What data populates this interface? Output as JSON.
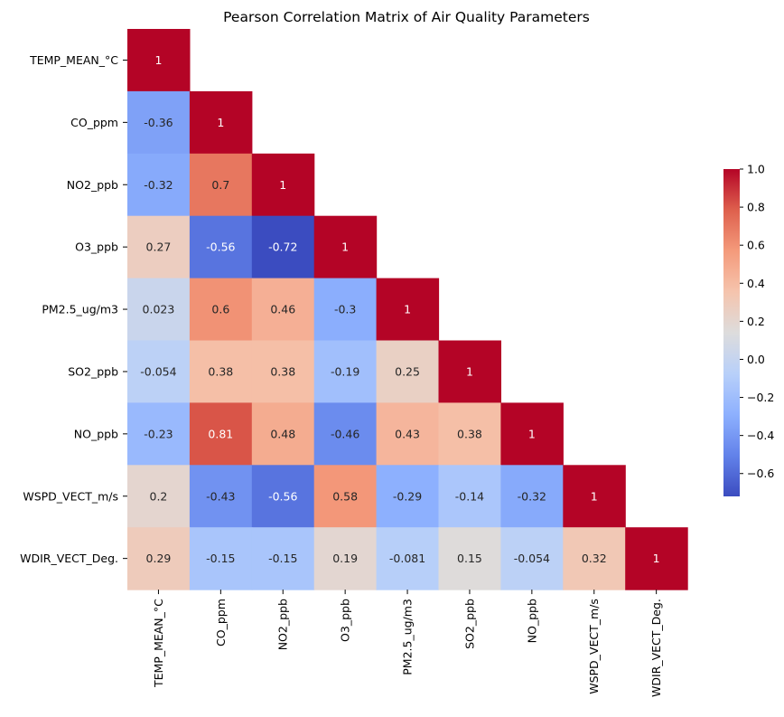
{
  "chart_data": {
    "type": "heatmap",
    "title": "Pearson Correlation Matrix of Air Quality Parameters",
    "xlabel": "",
    "ylabel": "",
    "colormap": "coolwarm",
    "mask": "upper-triangle",
    "labels": [
      "TEMP_MEAN_°C",
      "CO_ppm",
      "NO2_ppb",
      "O3_ppb",
      "PM2.5_ug/m3",
      "SO2_ppb",
      "NO_ppb",
      "WSPD_VECT_m/s",
      "WDIR_VECT_Deg."
    ],
    "values": [
      [
        1
      ],
      [
        -0.36,
        1
      ],
      [
        -0.32,
        0.7,
        1
      ],
      [
        0.27,
        -0.56,
        -0.72,
        1
      ],
      [
        0.023,
        0.6,
        0.46,
        -0.3,
        1
      ],
      [
        -0.054,
        0.38,
        0.38,
        -0.19,
        0.25,
        1
      ],
      [
        -0.23,
        0.81,
        0.48,
        -0.46,
        0.43,
        0.38,
        1
      ],
      [
        0.2,
        -0.43,
        -0.56,
        0.58,
        -0.29,
        -0.14,
        -0.32,
        1
      ],
      [
        0.29,
        -0.15,
        -0.15,
        0.19,
        -0.081,
        0.15,
        -0.054,
        0.32,
        1
      ]
    ],
    "cell_text": [
      [
        "1"
      ],
      [
        "-0.36",
        "1"
      ],
      [
        "-0.32",
        "0.7",
        "1"
      ],
      [
        "0.27",
        "-0.56",
        "-0.72",
        "1"
      ],
      [
        "0.023",
        "0.6",
        "0.46",
        "-0.3",
        "1"
      ],
      [
        "-0.054",
        "0.38",
        "0.38",
        "-0.19",
        "0.25",
        "1"
      ],
      [
        "-0.23",
        "0.81",
        "0.48",
        "-0.46",
        "0.43",
        "0.38",
        "1"
      ],
      [
        "0.2",
        "-0.43",
        "-0.56",
        "0.58",
        "-0.29",
        "-0.14",
        "-0.32",
        "1"
      ],
      [
        "0.29",
        "-0.15",
        "-0.15",
        "0.19",
        "-0.081",
        "0.15",
        "-0.054",
        "0.32",
        "1"
      ]
    ],
    "vmin": -0.72,
    "vmax": 1,
    "colorbar": {
      "ticks": [
        1.0,
        0.8,
        0.6,
        0.4,
        0.2,
        0.0,
        -0.2,
        -0.4,
        -0.6
      ],
      "tick_labels": [
        "1.0",
        "0.8",
        "0.6",
        "0.4",
        "0.2",
        "0.0",
        "−0.2",
        "−0.4",
        "−0.6"
      ],
      "placement": "right"
    }
  }
}
